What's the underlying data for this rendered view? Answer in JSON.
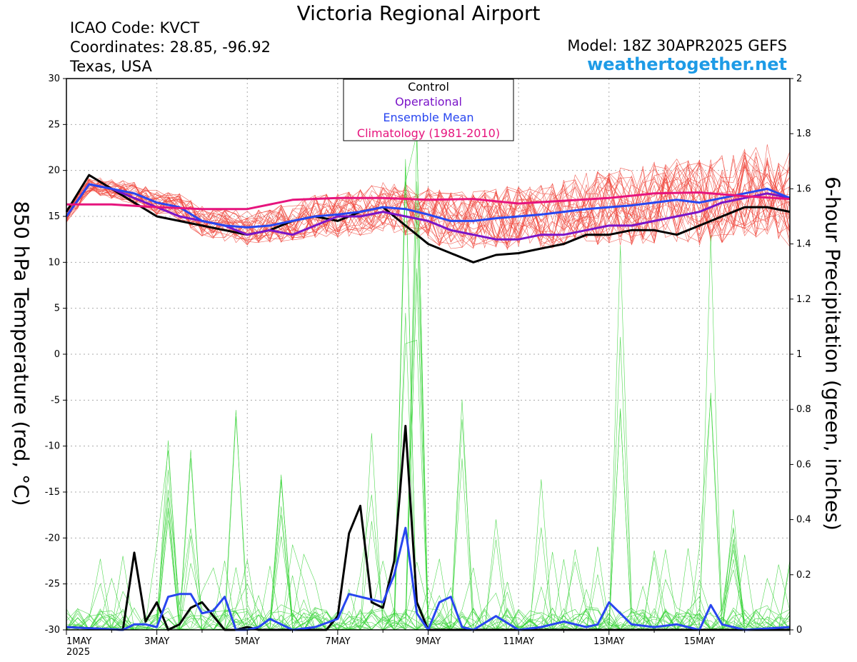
{
  "header": {
    "title": "Victoria Regional Airport",
    "icao": "ICAO Code: KVCT",
    "coordinates": "Coordinates: 28.85, -96.92",
    "region": "Texas, USA",
    "model": "Model: 18Z 30APR2025 GEFS",
    "site": "weathertogether.net"
  },
  "colors": {
    "control": "#000000",
    "operational": "#7a14c8",
    "ensemble_mean": "#2846f0",
    "climatology": "#e6147d",
    "members_temp": "#f0463c",
    "members_precip": "#32d232",
    "site": "#1e9be6"
  },
  "chart_data": {
    "type": "line",
    "title": "Victoria Regional Airport",
    "ylabel": "850 hPa Temperature (red, °C)",
    "y2label": "6-hour Precipitation (green, inches)",
    "ylim": [
      -30,
      30
    ],
    "y2lim": [
      0,
      2
    ],
    "y_ticks": [
      "30",
      "25",
      "20",
      "15",
      "10",
      "5",
      "0",
      "-5",
      "-10",
      "-15",
      "-20",
      "-25",
      "-30"
    ],
    "y2_ticks": [
      "2",
      "1.8",
      "1.6",
      "1.4",
      "1.2",
      "1",
      "0.8",
      "0.6",
      "0.4",
      "0.2",
      "0"
    ],
    "x_ticks": [
      {
        "day": 0,
        "label": "1MAY",
        "sub": "2025"
      },
      {
        "day": 2,
        "label": "3MAY"
      },
      {
        "day": 4,
        "label": "5MAY"
      },
      {
        "day": 6,
        "label": "7MAY"
      },
      {
        "day": 8,
        "label": "9MAY"
      },
      {
        "day": 10,
        "label": "11MAY"
      },
      {
        "day": 12,
        "label": "13MAY"
      },
      {
        "day": 14,
        "label": "15MAY"
      }
    ],
    "xlim_days": [
      0,
      16
    ],
    "grid": true,
    "legend_position": "top-center",
    "legend": [
      "Control",
      "Operational",
      "Ensemble Mean",
      "Climatology (1981-2010)"
    ],
    "series": [
      {
        "name": "Control",
        "kind": "temperature",
        "x": [
          0,
          0.5,
          1,
          1.5,
          2,
          2.5,
          3,
          3.5,
          4,
          4.5,
          5,
          5.5,
          6,
          6.5,
          7,
          7.5,
          8,
          8.5,
          9,
          9.5,
          10,
          10.5,
          11,
          11.5,
          12,
          12.5,
          13,
          13.5,
          14,
          14.5,
          15,
          15.5,
          16
        ],
        "values": [
          15.5,
          19.5,
          18,
          16.5,
          15,
          14.5,
          14,
          13.5,
          13,
          13.5,
          14.5,
          15,
          14.5,
          15.5,
          16,
          14,
          12,
          11,
          10,
          10.8,
          11,
          11.5,
          12,
          13,
          13,
          13.5,
          13.5,
          13,
          14,
          15,
          16,
          16,
          15.5
        ]
      },
      {
        "name": "Operational",
        "kind": "temperature",
        "x": [
          0,
          0.5,
          1,
          1.5,
          2,
          2.5,
          3,
          3.5,
          4,
          4.5,
          5,
          5.5,
          6,
          6.5,
          7,
          7.5,
          8,
          8.5,
          9,
          9.5,
          10,
          10.5,
          11,
          11.5,
          12,
          12.5,
          13,
          13.5,
          14,
          14.5,
          15,
          15.5,
          16
        ],
        "values": [
          15,
          18.5,
          18,
          17,
          16,
          15,
          14.5,
          14,
          13,
          13.5,
          13,
          14,
          15,
          15,
          15.5,
          15,
          14.5,
          13.5,
          13,
          12.5,
          12.5,
          13,
          13,
          13.5,
          14,
          14,
          14.5,
          15,
          15.5,
          16.5,
          17,
          17.5,
          17
        ]
      },
      {
        "name": "Ensemble Mean",
        "kind": "temperature",
        "x": [
          0,
          0.5,
          1,
          1.5,
          2,
          2.5,
          3,
          3.5,
          4,
          4.5,
          5,
          5.5,
          6,
          6.5,
          7,
          7.5,
          8,
          8.5,
          9,
          9.5,
          10,
          10.5,
          11,
          11.5,
          12,
          12.5,
          13,
          13.5,
          14,
          14.5,
          15,
          15.5,
          16
        ],
        "values": [
          15,
          18.5,
          18,
          17.5,
          16.5,
          16,
          14.5,
          14,
          13.8,
          14,
          14.5,
          15,
          15.2,
          15.5,
          16,
          15.8,
          15.2,
          14.5,
          14.5,
          14.8,
          15,
          15.2,
          15.5,
          15.8,
          16,
          16.2,
          16.5,
          16.8,
          16.5,
          17,
          17.5,
          18,
          17
        ]
      },
      {
        "name": "Climatology (1981-2010)",
        "kind": "temperature",
        "x": [
          0,
          1,
          2,
          3,
          4,
          5,
          6,
          7,
          8,
          9,
          10,
          11,
          12,
          13,
          14,
          15,
          16
        ],
        "values": [
          16.3,
          16.3,
          16,
          15.8,
          15.8,
          16.8,
          17,
          17,
          16.8,
          16.9,
          16.4,
          16.7,
          17,
          17.5,
          17.6,
          17.2,
          16.9
        ]
      },
      {
        "name": "Control",
        "kind": "precipitation",
        "x": [
          0,
          1.25,
          1.5,
          1.75,
          2,
          2.25,
          2.5,
          2.75,
          3,
          3.25,
          3.5,
          3.75,
          4,
          4.25,
          5,
          5.75,
          6,
          6.25,
          6.5,
          6.75,
          7,
          7.25,
          7.5,
          7.75,
          8,
          9,
          10,
          12,
          14,
          16
        ],
        "values": [
          0.01,
          0,
          0.28,
          0.03,
          0.1,
          0,
          0.02,
          0.08,
          0.1,
          0.05,
          0,
          0,
          0.01,
          0,
          0,
          0,
          0.05,
          0.35,
          0.45,
          0.1,
          0.08,
          0.25,
          0.74,
          0.1,
          0,
          0,
          0,
          0,
          0,
          0
        ]
      },
      {
        "name": "Ensemble Mean",
        "kind": "precipitation",
        "x": [
          0,
          1.25,
          1.5,
          1.75,
          2,
          2.25,
          2.5,
          2.75,
          3,
          3.25,
          3.5,
          3.75,
          4,
          4.25,
          4.5,
          5,
          5.5,
          6,
          6.25,
          6.5,
          6.75,
          7,
          7.25,
          7.5,
          7.75,
          8,
          8.25,
          8.5,
          8.75,
          9,
          9.5,
          10,
          10.5,
          11,
          11.5,
          11.75,
          12,
          12.5,
          13,
          13.5,
          14,
          14.25,
          14.5,
          15,
          16
        ],
        "values": [
          0.01,
          0,
          0.02,
          0.02,
          0.01,
          0.12,
          0.13,
          0.13,
          0.06,
          0.07,
          0.12,
          0,
          0,
          0.01,
          0.04,
          0,
          0.01,
          0.04,
          0.13,
          0.12,
          0.11,
          0.1,
          0.2,
          0.37,
          0.06,
          0,
          0.1,
          0.12,
          0.01,
          0,
          0.05,
          0,
          0.01,
          0.03,
          0.01,
          0.02,
          0.1,
          0.02,
          0.01,
          0.02,
          0,
          0.09,
          0.02,
          0,
          0.01
        ]
      }
    ]
  }
}
